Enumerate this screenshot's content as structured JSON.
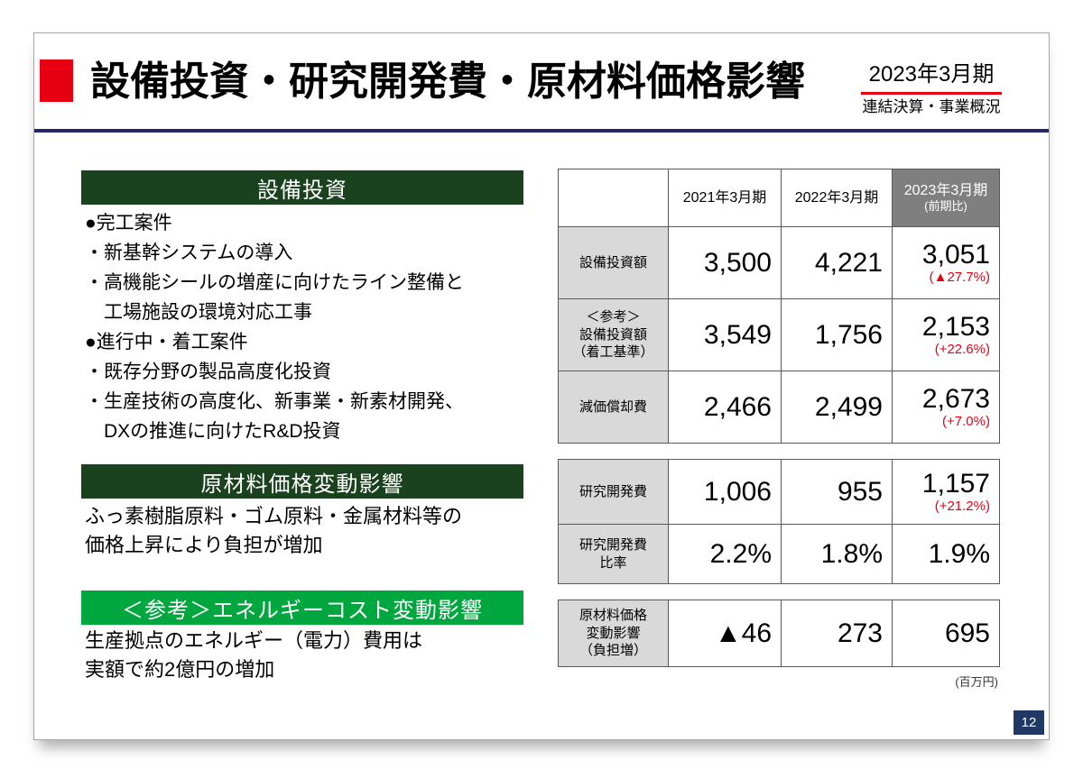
{
  "header": {
    "title": "設備投資・研究開発費・原材料価格影響",
    "period": "2023年3月期",
    "subtitle": "連結決算・事業概況"
  },
  "left": {
    "capex": {
      "title": "設備投資",
      "lines": [
        "●完工案件",
        "・新基幹システムの導入",
        "・高機能シールの増産に向けたライン整備と",
        "　工場施設の環境対応工事",
        "●進行中・着工案件",
        "・既存分野の製品高度化投資",
        "・生産技術の高度化、新事業・新素材開発、",
        "　DXの推進に向けたR&D投資"
      ]
    },
    "material": {
      "title": "原材料価格変動影響",
      "lines": [
        "ふっ素樹脂原料・ゴム原料・金属材料等の",
        "価格上昇により負担が増加"
      ]
    },
    "energy": {
      "title": "＜参考＞エネルギーコスト変動影響",
      "lines": [
        "生産拠点のエネルギー（電力）費用は",
        "実額で約2億円の増加"
      ]
    }
  },
  "table": {
    "col_2021": "2021年3月期",
    "col_2022": "2022年3月期",
    "col_2023": "2023年3月期",
    "col_2023_sub": "(前期比)",
    "unit": "(百万円)",
    "rows": [
      {
        "label": "設備投資額",
        "v2021": "3,500",
        "v2022": "4,221",
        "v2023": "3,051",
        "delta": "(▲27.7%)"
      },
      {
        "label": "＜参考＞\n設備投資額\n（着工基準）",
        "v2021": "3,549",
        "v2022": "1,756",
        "v2023": "2,153",
        "delta": "(+22.6%)"
      },
      {
        "label": "減価償却費",
        "v2021": "2,466",
        "v2022": "2,499",
        "v2023": "2,673",
        "delta": "(+7.0%)"
      },
      {
        "label": "研究開発費",
        "v2021": "1,006",
        "v2022": "955",
        "v2023": "1,157",
        "delta": "(+21.2%)"
      },
      {
        "label": "研究開発費\n比率",
        "v2021": "2.2%",
        "v2022": "1.8%",
        "v2023": "1.9%"
      },
      {
        "label": "原材料価格\n変動影響\n（負担増）",
        "v2021": "▲46",
        "v2022": "273",
        "v2023": "695"
      }
    ]
  },
  "footer": {
    "page_number": "12"
  },
  "colors": {
    "accent_red": "#e60012",
    "dark_green": "#1b421e",
    "bright_green": "#00a63e",
    "divider_navy": "#26266a",
    "page_box_navy": "#203864",
    "table_label_gray": "#d9d9d9",
    "table_head_dark_gray": "#7f7f7f",
    "delta_red": "#e60012"
  }
}
